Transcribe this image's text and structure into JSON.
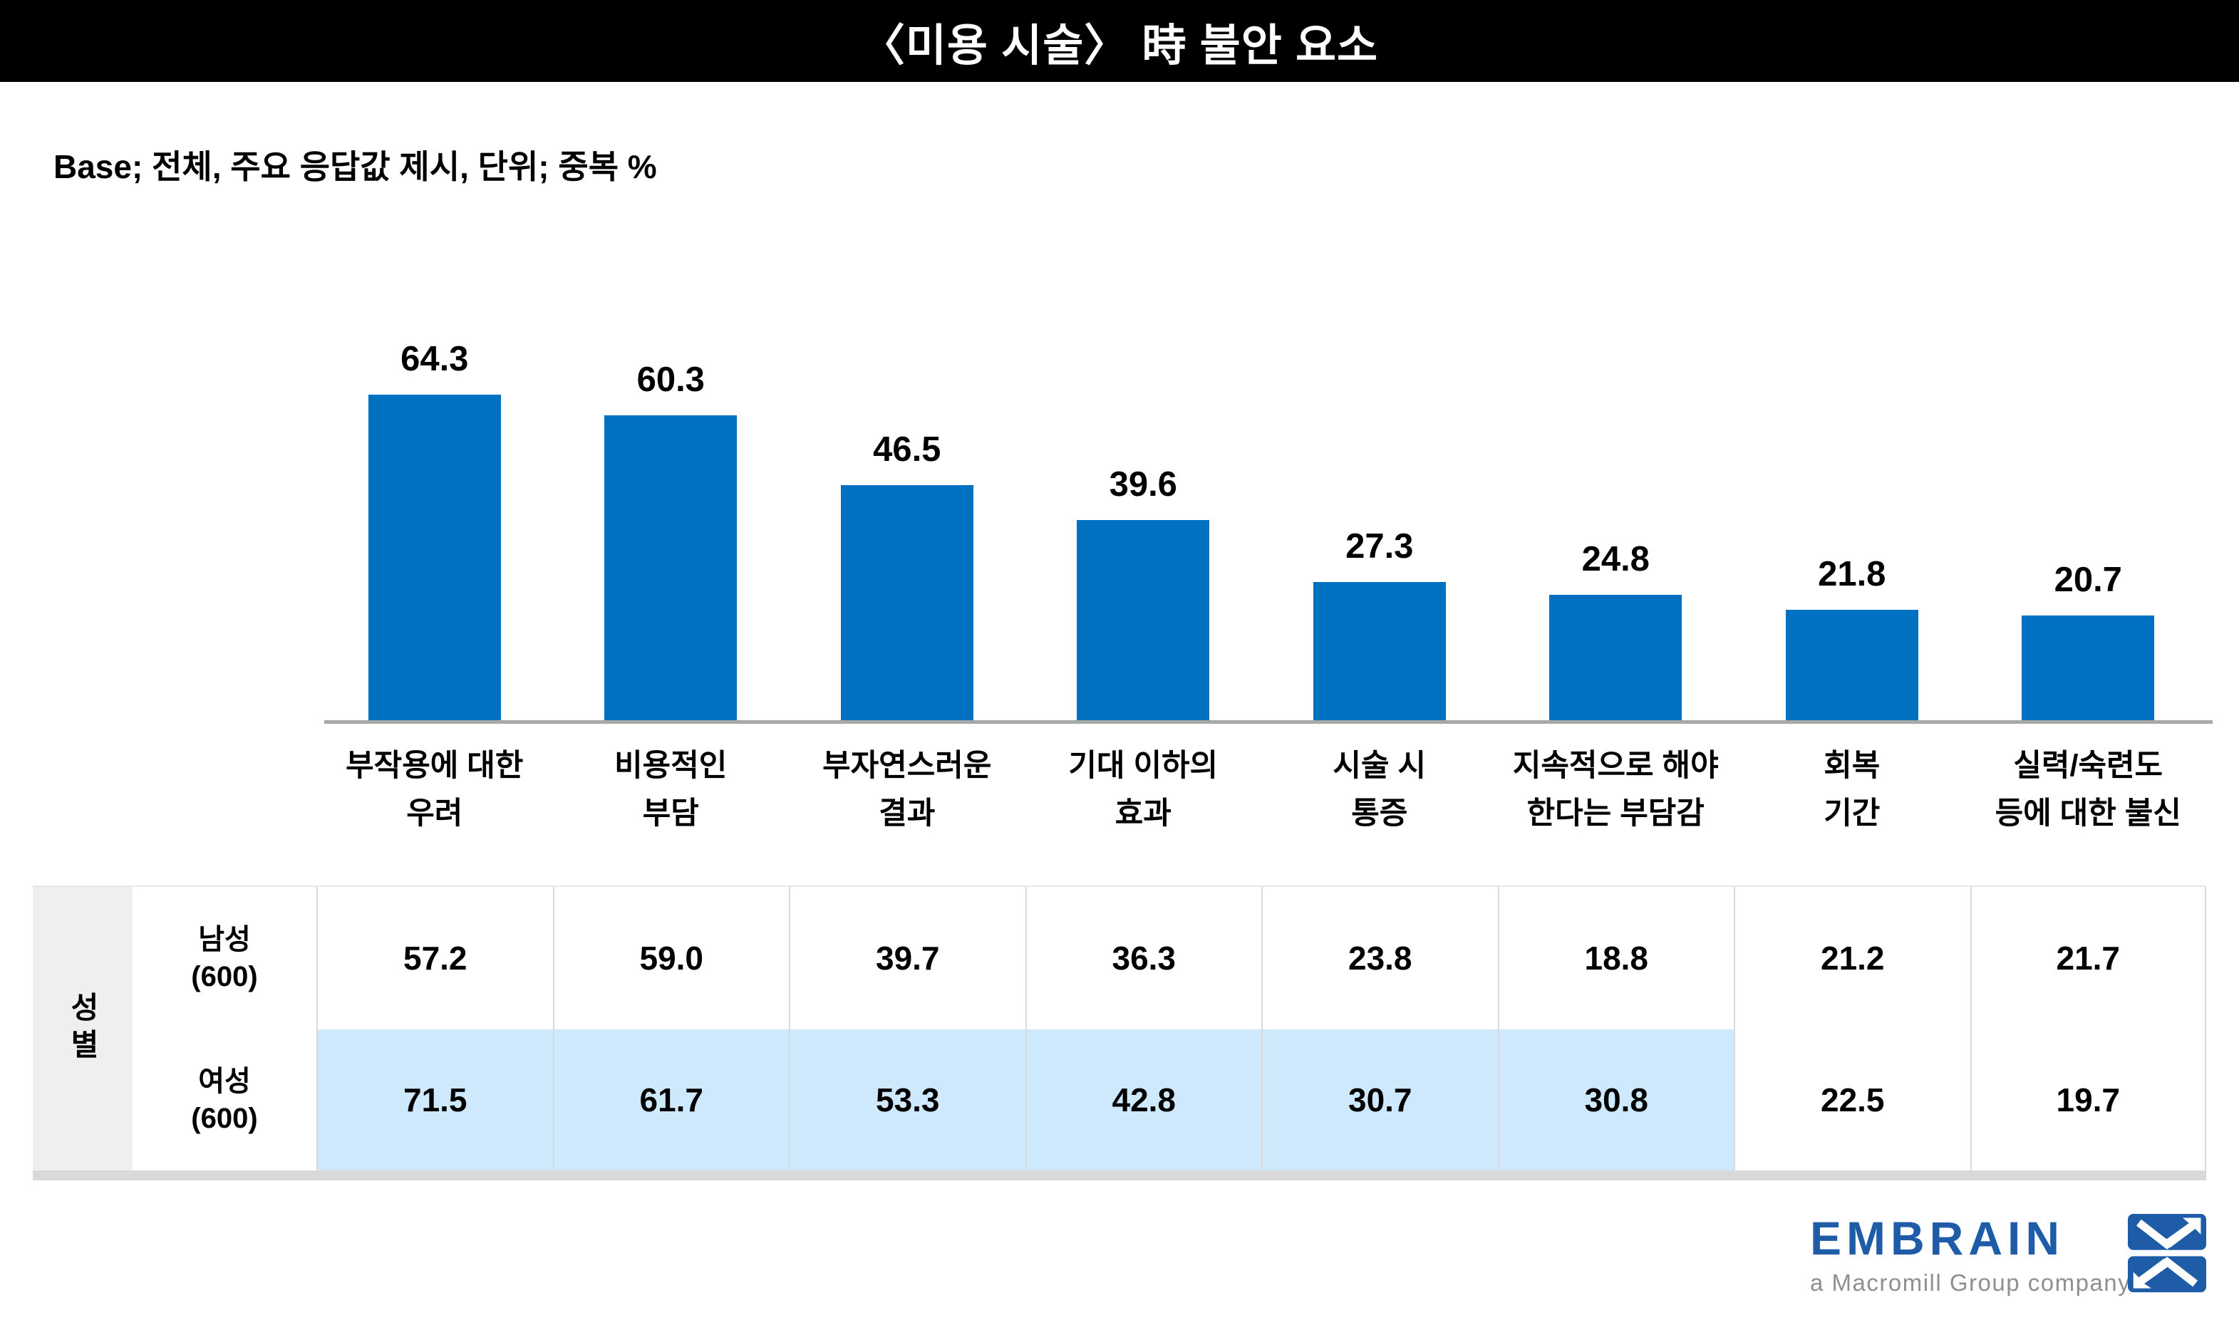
{
  "header": {
    "title": "〈미용 시술〉 時 불안 요소"
  },
  "base_note": "Base; 전체, 주요 응답값 제시, 단위; 중복 %",
  "colors": {
    "bar_blue": "#0070C0",
    "female_highlight": "#CDE9FB",
    "axis_gray": "#A8A8A8",
    "group_cell_gray": "#EFEFEF",
    "header_bg": "#000000",
    "logo_blue": "#1E5CA8",
    "logo_tagline_gray": "#8F8F8F"
  },
  "chart_data": {
    "type": "bar",
    "title": "〈미용 시술〉 時 불안 요소",
    "base_note": "Base; 전체, 주요 응답값 제시, 단위; 중복 %",
    "unit": "중복 %",
    "categories": [
      "부작용에 대한\n우려",
      "비용적인\n부담",
      "부자연스러운\n결과",
      "기대 이하의\n효과",
      "시술 시\n통증",
      "지속적으로 해야\n한다는 부담감",
      "회복\n기간",
      "실력/숙련도\n등에 대한 불신"
    ],
    "values": [
      64.3,
      60.3,
      46.5,
      39.6,
      27.3,
      24.8,
      21.8,
      20.7
    ],
    "ylim": [
      0,
      70
    ],
    "grid": false,
    "value_labels": true,
    "legend_position": "none",
    "series": [
      {
        "name": "전체",
        "values": [
          64.3,
          60.3,
          46.5,
          39.6,
          27.3,
          24.8,
          21.8,
          20.7
        ]
      },
      {
        "name": "남성(600)",
        "values": [
          57.2,
          59.0,
          39.7,
          36.3,
          23.8,
          18.8,
          21.2,
          21.7
        ]
      },
      {
        "name": "여성(600)",
        "values": [
          71.5,
          61.7,
          53.3,
          42.8,
          30.7,
          30.8,
          22.5,
          19.7
        ]
      }
    ]
  },
  "table": {
    "group_label": "성별",
    "rows": [
      {
        "label": "남성",
        "base": "(600)",
        "values": [
          57.2,
          59.0,
          39.7,
          36.3,
          23.8,
          18.8,
          21.2,
          21.7
        ],
        "highlighted_cells": []
      },
      {
        "label": "여성",
        "base": "(600)",
        "values": [
          71.5,
          61.7,
          53.3,
          42.8,
          30.7,
          30.8,
          22.5,
          19.7
        ],
        "highlighted_cells": [
          0,
          1,
          2,
          3,
          4,
          5
        ]
      }
    ]
  },
  "footer": {
    "logo_text": "EMBRAIN",
    "logo_tagline": "a Macromill Group company"
  }
}
